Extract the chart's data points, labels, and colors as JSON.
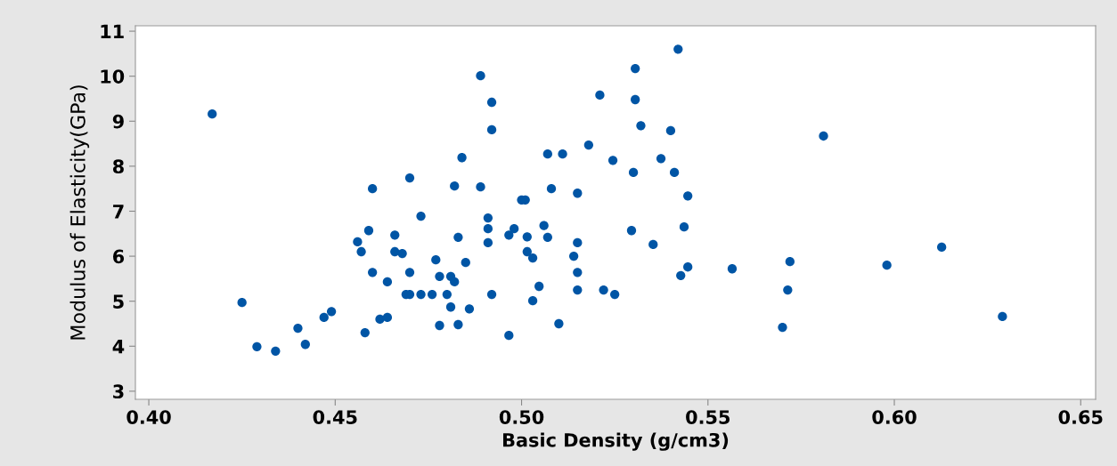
{
  "chart_data": {
    "type": "scatter",
    "xlabel": "Basic Density (g/cm3)",
    "ylabel": "Modulus of Elasticity(GPa)",
    "xlim": [
      0.3964,
      0.654
    ],
    "ylim": [
      2.82,
      11.12
    ],
    "xticks": [
      {
        "value": 0.4,
        "label": "0.40"
      },
      {
        "value": 0.45,
        "label": "0.45"
      },
      {
        "value": 0.5,
        "label": "0.50"
      },
      {
        "value": 0.55,
        "label": "0.55"
      },
      {
        "value": 0.6,
        "label": "0.60"
      },
      {
        "value": 0.65,
        "label": "0.65"
      }
    ],
    "yticks": [
      3,
      4,
      5,
      6,
      7,
      8,
      9,
      10,
      11
    ],
    "grid": false,
    "marker": "circle",
    "series": [
      {
        "color": "#0055a5",
        "x": [
          0.417,
          0.425,
          0.429,
          0.434,
          0.44,
          0.442,
          0.447,
          0.449,
          0.456,
          0.457,
          0.458,
          0.459,
          0.46,
          0.46,
          0.462,
          0.464,
          0.464,
          0.466,
          0.466,
          0.468,
          0.47,
          0.47,
          0.469,
          0.47,
          0.473,
          0.473,
          0.476,
          0.477,
          0.478,
          0.478,
          0.48,
          0.481,
          0.481,
          0.482,
          0.482,
          0.483,
          0.483,
          0.484,
          0.485,
          0.486,
          0.489,
          0.489,
          0.491,
          0.491,
          0.491,
          0.492,
          0.492,
          0.492,
          0.4966,
          0.4966,
          0.498,
          0.5,
          0.501,
          0.5015,
          0.5015,
          0.503,
          0.503,
          0.5047,
          0.506,
          0.507,
          0.507,
          0.508,
          0.51,
          0.511,
          0.514,
          0.515,
          0.515,
          0.515,
          0.515,
          0.518,
          0.521,
          0.522,
          0.5245,
          0.525,
          0.5295,
          0.53,
          0.5305,
          0.5305,
          0.532,
          0.5353,
          0.5374,
          0.54,
          0.541,
          0.542,
          0.5427,
          0.5436,
          0.5446,
          0.5446,
          0.5565,
          0.57,
          0.5714,
          0.572,
          0.581,
          0.598,
          0.6127,
          0.629
        ],
        "values": [
          9.16,
          4.97,
          3.99,
          3.89,
          4.4,
          4.04,
          4.64,
          4.77,
          6.32,
          6.1,
          4.3,
          6.57,
          7.5,
          5.64,
          4.6,
          4.64,
          5.43,
          6.47,
          6.1,
          6.06,
          7.74,
          5.64,
          5.15,
          5.15,
          5.15,
          6.89,
          5.15,
          5.92,
          5.55,
          4.46,
          5.15,
          4.87,
          5.55,
          5.43,
          7.56,
          4.48,
          6.42,
          8.19,
          5.86,
          4.83,
          10.01,
          7.54,
          6.85,
          6.61,
          6.3,
          5.15,
          9.42,
          8.81,
          4.24,
          6.47,
          6.61,
          7.25,
          7.25,
          6.43,
          6.1,
          5.96,
          5.01,
          5.33,
          6.68,
          6.42,
          8.27,
          7.5,
          4.5,
          8.27,
          6.0,
          7.4,
          6.3,
          5.64,
          5.25,
          8.47,
          9.58,
          5.25,
          8.13,
          5.15,
          6.57,
          7.86,
          10.17,
          9.48,
          8.9,
          6.26,
          8.17,
          8.79,
          7.86,
          10.6,
          5.57,
          6.65,
          5.76,
          7.34,
          5.72,
          4.42,
          5.25,
          5.88,
          8.67,
          5.8,
          6.2,
          4.66
        ]
      }
    ]
  }
}
